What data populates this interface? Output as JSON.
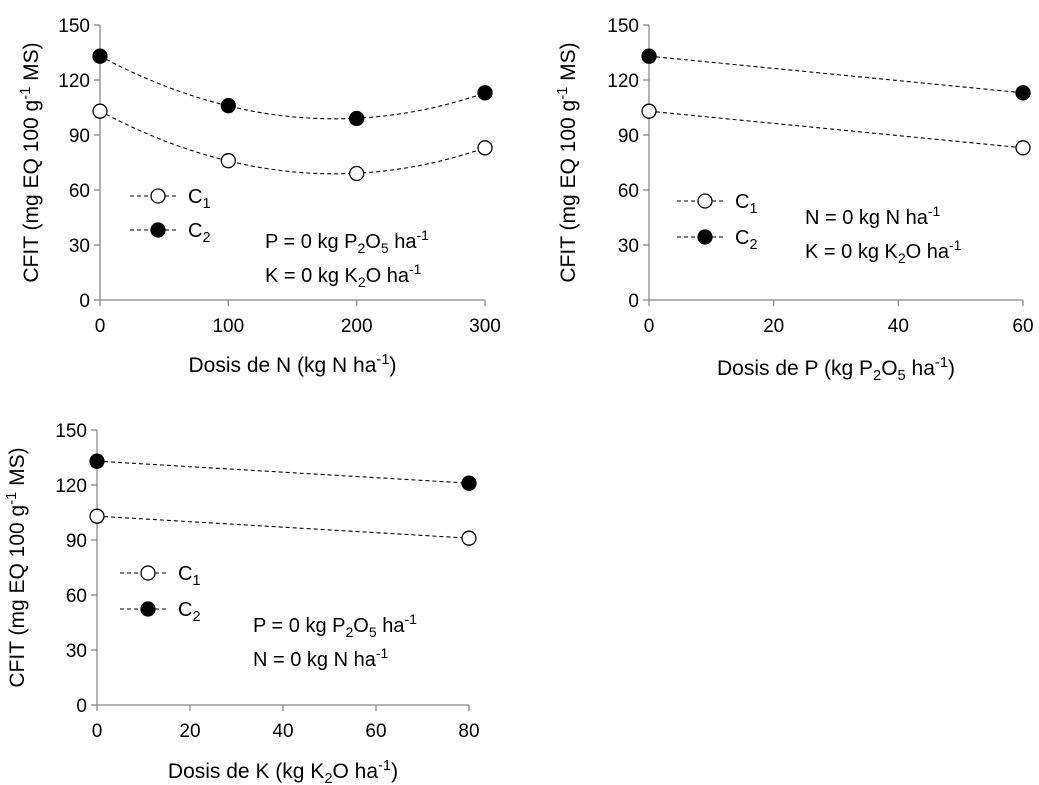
{
  "chart_data": [
    {
      "type": "line",
      "xlabel": "Dosis de N (kg N ha-1)",
      "ylabel": "CFIT (mg EQ 100 g-1 MS)",
      "xlim": [
        0,
        300
      ],
      "ylim": [
        0,
        150
      ],
      "xticks": [
        0,
        100,
        200,
        300
      ],
      "yticks": [
        0,
        30,
        60,
        90,
        120,
        150
      ],
      "grid": false,
      "legend": "middle-left",
      "series": [
        {
          "name": "C1",
          "marker": "open-circle",
          "x": [
            0,
            100,
            200,
            300
          ],
          "values": [
            103,
            76,
            69,
            83
          ]
        },
        {
          "name": "C2",
          "marker": "filled-circle",
          "x": [
            0,
            100,
            200,
            300
          ],
          "values": [
            133,
            106,
            99,
            113
          ]
        }
      ],
      "annotations": [
        "P = 0 kg P2O5 ha-1",
        "K = 0 kg K2O  ha-1"
      ]
    },
    {
      "type": "line",
      "xlabel": "Dosis de P (kg P2O5 ha-1)",
      "ylabel": "CFIT (mg EQ 100 g-1 MS)",
      "xlim": [
        0,
        60
      ],
      "ylim": [
        0,
        150
      ],
      "xticks": [
        0,
        20,
        40,
        60
      ],
      "yticks": [
        0,
        30,
        60,
        90,
        120,
        150
      ],
      "grid": false,
      "legend": "middle-left",
      "series": [
        {
          "name": "C1",
          "marker": "open-circle",
          "x": [
            0,
            60
          ],
          "values": [
            103,
            83
          ]
        },
        {
          "name": "C2",
          "marker": "filled-circle",
          "x": [
            0,
            60
          ],
          "values": [
            133,
            113
          ]
        }
      ],
      "annotations": [
        "N = 0 kg N ha-1",
        "K = 0 kg K2O ha-1"
      ]
    },
    {
      "type": "line",
      "xlabel": "Dosis de K (kg K2O ha-1)",
      "ylabel": "CFIT (mg EQ 100 g-1 MS)",
      "xlim": [
        0,
        80
      ],
      "ylim": [
        0,
        150
      ],
      "xticks": [
        0,
        20,
        40,
        60,
        80
      ],
      "yticks": [
        0,
        30,
        60,
        90,
        120,
        150
      ],
      "grid": false,
      "legend": "middle-left",
      "series": [
        {
          "name": "C1",
          "marker": "open-circle",
          "x": [
            0,
            80
          ],
          "values": [
            103,
            91
          ]
        },
        {
          "name": "C2",
          "marker": "filled-circle",
          "x": [
            0,
            80
          ],
          "values": [
            133,
            121
          ]
        }
      ],
      "annotations": [
        "P = 0 kg P2O5 ha-1",
        "N = 0 kg N ha-1"
      ]
    }
  ]
}
